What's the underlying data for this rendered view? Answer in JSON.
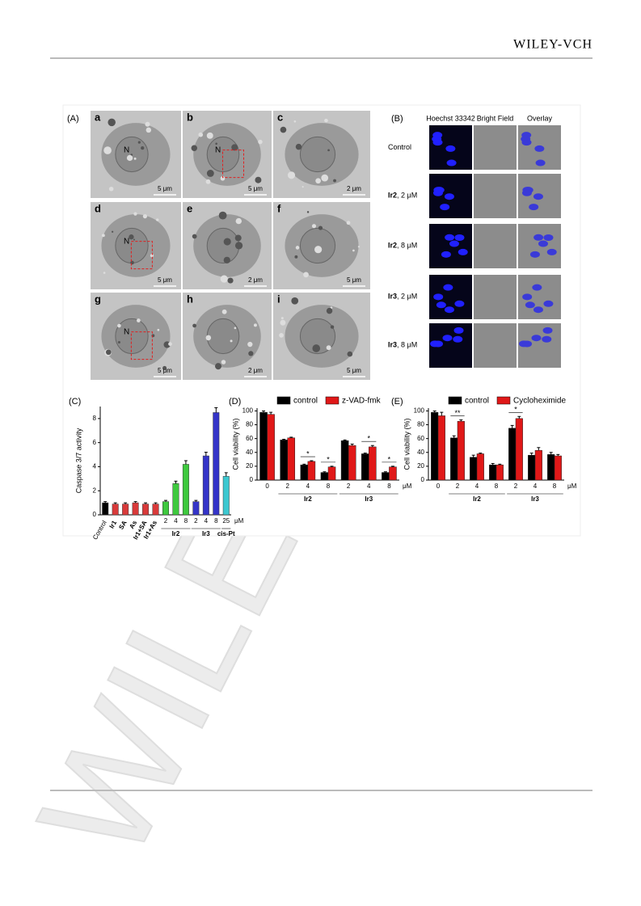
{
  "header": {
    "publisher": "WILEY-VCH"
  },
  "watermark": "WILEY",
  "figure": {
    "panel_a": {
      "label": "(A)",
      "images": [
        {
          "label": "a",
          "nucleus": "N",
          "scale": "5 μm"
        },
        {
          "label": "b",
          "nucleus": "N",
          "scale": "5 μm"
        },
        {
          "label": "c",
          "scale": "2 μm"
        },
        {
          "label": "d",
          "nucleus": "N",
          "scale": "5 μm"
        },
        {
          "label": "e",
          "scale": "2 μm"
        },
        {
          "label": "f",
          "scale": "5 μm"
        },
        {
          "label": "g",
          "nucleus": "N",
          "scale": "5 μm"
        },
        {
          "label": "h",
          "scale": "2 μm"
        },
        {
          "label": "i",
          "scale": "5 μm"
        }
      ]
    },
    "panel_b": {
      "label": "(B)",
      "columns": [
        "Hoechst 33342",
        "Bright Field",
        "Overlay"
      ],
      "rows": [
        {
          "label": "Control"
        },
        {
          "compound": "Ir2",
          "dose": ", 2 μM"
        },
        {
          "compound": "Ir2",
          "dose": ", 8 μM"
        },
        {
          "compound": "Ir3",
          "dose": ", 2 μM"
        },
        {
          "compound": "Ir3",
          "dose": ", 8 μM"
        }
      ]
    }
  },
  "chart_data": [
    {
      "type": "bar",
      "panel": "(C)",
      "y_label": "Caspase 3/7 activity",
      "categories": [
        "Control",
        "Ir1",
        "SA",
        "As",
        "Ir1+SA",
        "Ir1+As",
        "2",
        "4",
        "8",
        "2",
        "4",
        "8",
        "25"
      ],
      "values": [
        1.0,
        0.9,
        0.9,
        1.0,
        0.9,
        0.9,
        1.1,
        2.6,
        4.2,
        1.1,
        4.9,
        8.5,
        3.2
      ],
      "errors": [
        0.1,
        0.1,
        0.1,
        0.1,
        0.1,
        0.1,
        0.1,
        0.2,
        0.3,
        0.1,
        0.3,
        0.4,
        0.3
      ],
      "colors": [
        "#000000",
        "#d93a3a",
        "#d93a3a",
        "#d93a3a",
        "#d93a3a",
        "#d93a3a",
        "#3ec93e",
        "#3ec93e",
        "#3ec93e",
        "#3434c8",
        "#3434c8",
        "#3434c8",
        "#3cc8d0"
      ],
      "groups": [
        "Ir2",
        "Ir3",
        "cis-Pt"
      ],
      "unit": "μM",
      "ylim": [
        0,
        9
      ],
      "yticks": [
        0,
        2,
        4,
        6,
        8
      ]
    },
    {
      "type": "grouped_bar",
      "panel": "(D)",
      "y_label": "Cell viability (%)",
      "categories": [
        "0",
        "2",
        "4",
        "8",
        "2",
        "4",
        "8"
      ],
      "series": [
        {
          "name": "control",
          "color": "#000000",
          "values": [
            98,
            58,
            22,
            11,
            57,
            38,
            11
          ],
          "errors": [
            2,
            1,
            1,
            1,
            1,
            1,
            1
          ]
        },
        {
          "name": "z-VAD-fmk",
          "color": "#e01818",
          "values": [
            95,
            61,
            27,
            19,
            50,
            48,
            19
          ],
          "errors": [
            3,
            1,
            1,
            1,
            2,
            2,
            1
          ]
        }
      ],
      "groups": [
        "Ir2",
        "Ir3"
      ],
      "unit": "μM",
      "annotations": [
        "*",
        "*",
        "*",
        "*"
      ],
      "ylim": [
        0,
        104
      ],
      "yticks": [
        0,
        20,
        40,
        60,
        80,
        100
      ]
    },
    {
      "type": "grouped_bar",
      "panel": "(E)",
      "y_label": "Cell viability (%)",
      "categories": [
        "0",
        "2",
        "4",
        "8",
        "2",
        "4",
        "8"
      ],
      "series": [
        {
          "name": "control",
          "color": "#000000",
          "values": [
            98,
            61,
            33,
            22,
            75,
            36,
            37
          ],
          "errors": [
            2,
            3,
            3,
            2,
            4,
            3,
            3
          ]
        },
        {
          "name": "Cycloheximide",
          "color": "#e01818",
          "values": [
            93,
            85,
            38,
            22,
            89,
            43,
            35
          ],
          "errors": [
            5,
            2,
            1,
            1,
            3,
            4,
            2
          ]
        }
      ],
      "groups": [
        "Ir2",
        "Ir3"
      ],
      "unit": "μM",
      "annotations": [
        "**",
        "*"
      ],
      "ylim": [
        0,
        104
      ],
      "yticks": [
        0,
        20,
        40,
        60,
        80,
        100
      ]
    }
  ]
}
